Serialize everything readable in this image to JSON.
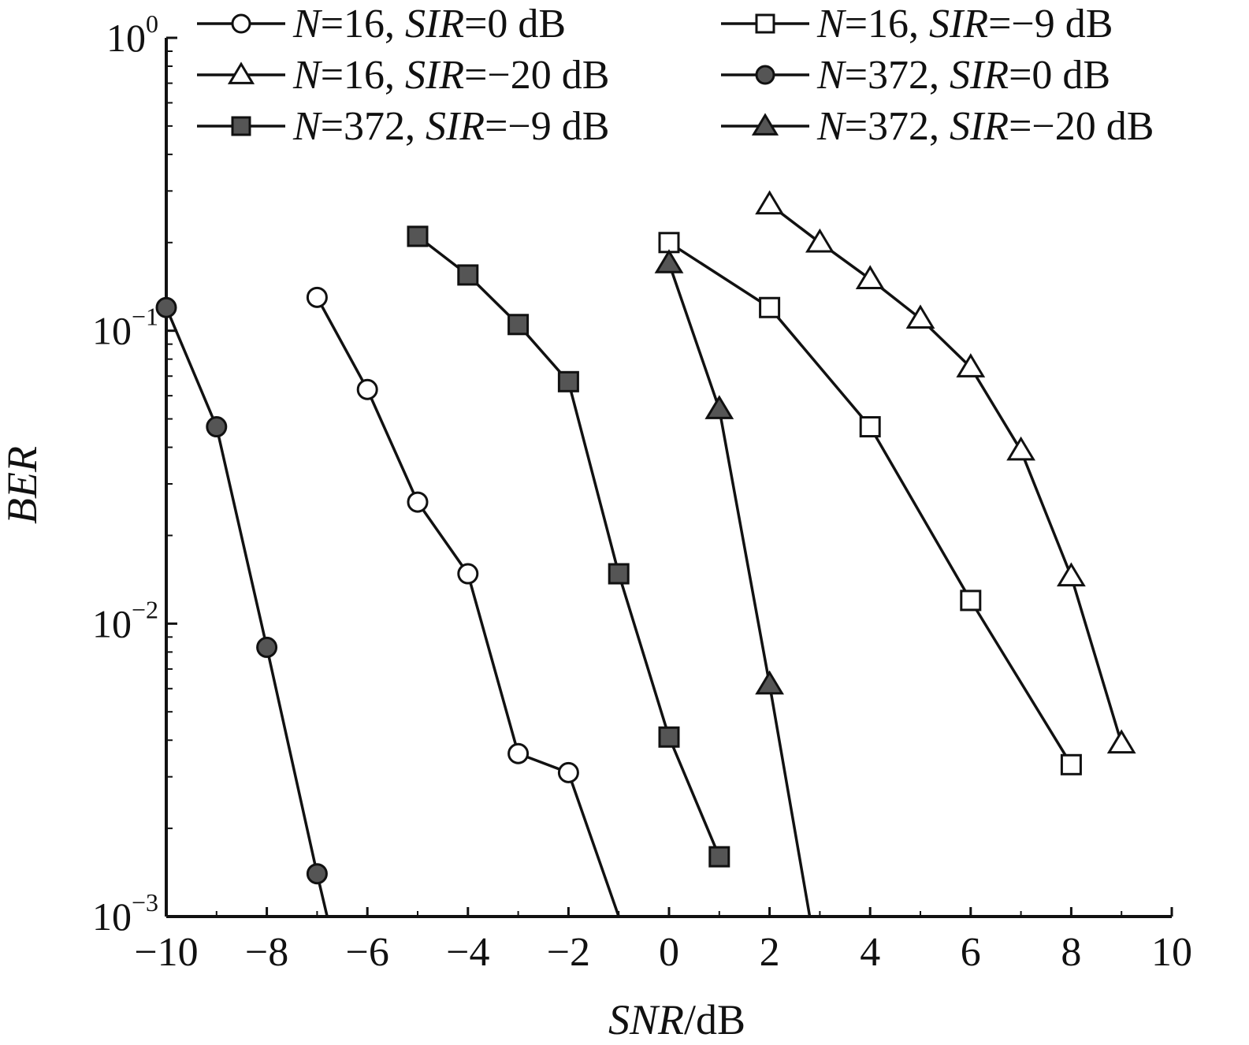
{
  "chart_data": {
    "type": "line",
    "title": "",
    "xlabel": {
      "italic": "SNR",
      "plain": "/dB"
    },
    "ylabel": "BER",
    "xlim": [
      -10,
      10
    ],
    "ylim": [
      0.001,
      1
    ],
    "yscale": "log",
    "grid": false,
    "legend_position": "top",
    "x_ticks": [
      -10,
      -8,
      -6,
      -4,
      -2,
      0,
      2,
      4,
      6,
      8,
      10
    ],
    "x_tick_labels": [
      "−10",
      "−8",
      "−6",
      "−4",
      "−2",
      "0",
      "2",
      "4",
      "6",
      "8",
      "10"
    ],
    "y_ticks": [
      {
        "value": 1,
        "base": "10",
        "exp": "0"
      },
      {
        "value": 0.1,
        "base": "10",
        "exp": "−1"
      },
      {
        "value": 0.01,
        "base": "10",
        "exp": "−2"
      },
      {
        "value": 0.001,
        "base": "10",
        "exp": "−3"
      }
    ],
    "series": [
      {
        "legend": {
          "n": "16",
          "sir": "0 dB"
        },
        "marker": "circle",
        "fill": "#ffffff",
        "points": [
          [
            -7,
            0.13
          ],
          [
            -6,
            0.063
          ],
          [
            -5,
            0.026
          ],
          [
            -4,
            0.0148
          ],
          [
            -3,
            0.0036
          ],
          [
            -2,
            0.0031
          ],
          [
            -1.0,
            0.001
          ]
        ],
        "marker_count": 6
      },
      {
        "legend": {
          "n": "16",
          "sir": "−9 dB"
        },
        "marker": "square",
        "fill": "#ffffff",
        "points": [
          [
            0,
            0.2
          ],
          [
            2,
            0.12
          ],
          [
            4,
            0.047
          ],
          [
            6,
            0.012
          ],
          [
            8,
            0.0033
          ]
        ],
        "marker_count": 5
      },
      {
        "legend": {
          "n": "16",
          "sir": "−20 dB"
        },
        "marker": "triangle",
        "fill": "#ffffff",
        "points": [
          [
            2,
            0.27
          ],
          [
            3,
            0.2
          ],
          [
            4,
            0.15
          ],
          [
            5,
            0.11
          ],
          [
            6,
            0.075
          ],
          [
            7,
            0.039
          ],
          [
            8,
            0.0145
          ],
          [
            9,
            0.0039
          ]
        ],
        "marker_count": 8
      },
      {
        "legend": {
          "n": "372",
          "sir": "0 dB"
        },
        "marker": "circle",
        "fill": "#555555",
        "points": [
          [
            -10,
            0.12
          ],
          [
            -9,
            0.047
          ],
          [
            -8,
            0.0083
          ],
          [
            -7,
            0.0014
          ],
          [
            -6.8,
            0.001
          ]
        ],
        "marker_count": 4
      },
      {
        "legend": {
          "n": "372",
          "sir": "−9 dB"
        },
        "marker": "square",
        "fill": "#555555",
        "points": [
          [
            -5,
            0.21
          ],
          [
            -4,
            0.155
          ],
          [
            -3,
            0.105
          ],
          [
            -2,
            0.067
          ],
          [
            -1,
            0.0148
          ],
          [
            0,
            0.0041
          ],
          [
            1,
            0.0016
          ]
        ],
        "marker_count": 7
      },
      {
        "legend": {
          "n": "372",
          "sir": "−20 dB"
        },
        "marker": "triangle",
        "fill": "#555555",
        "points": [
          [
            0,
            0.17
          ],
          [
            1,
            0.054
          ],
          [
            2,
            0.0062
          ],
          [
            2.8,
            0.001
          ]
        ],
        "marker_count": 3
      }
    ],
    "legend_order": [
      0,
      1,
      2,
      3,
      4,
      5
    ]
  }
}
